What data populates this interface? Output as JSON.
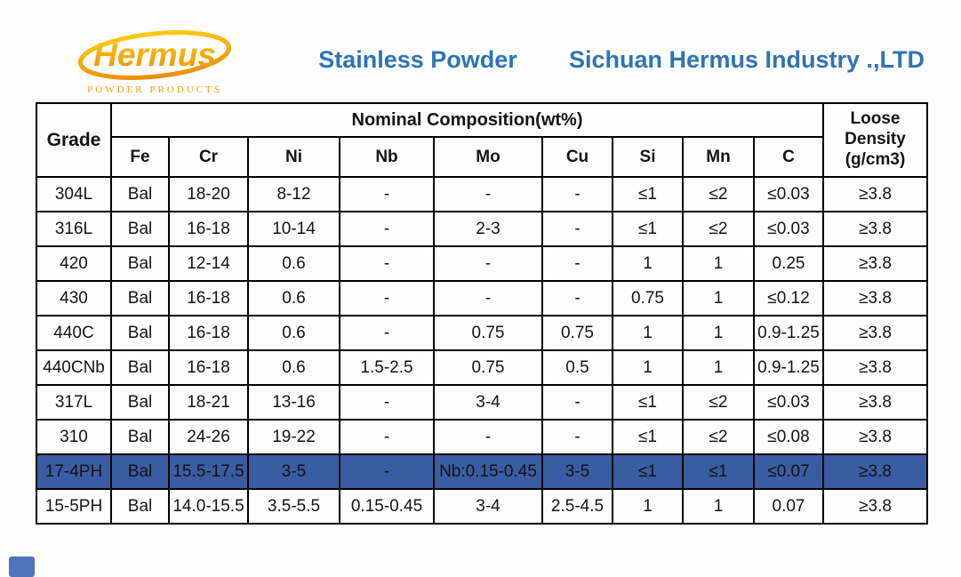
{
  "header": {
    "logo_text": "Hermus",
    "logo_tagline": "POWDER PRODUCTS",
    "product_title": "Stainless Powder",
    "company_name": "Sichuan Hermus Industry .,LTD"
  },
  "colors": {
    "title_blue": "#2e74b5",
    "highlight_row_blue": "#3a5ca2",
    "logo_gold_light": "#fdc913",
    "logo_gold_dark": "#ee8f04",
    "corner_mark_blue": "#4f74bd",
    "border_black": "#000000"
  },
  "table": {
    "grade_header": "Grade",
    "composition_header": "Nominal Composition(wt%)",
    "density_header_lines": [
      "Loose",
      "Density",
      "(g/cm3)"
    ],
    "element_headers": [
      "Fe",
      "Cr",
      "Ni",
      "Nb",
      "Mo",
      "Cu",
      "Si",
      "Mn",
      "C"
    ],
    "rows": [
      {
        "grade": "304L",
        "highlighted": false,
        "values": [
          "Bal",
          "18-20",
          "8-12",
          "-",
          "-",
          "-",
          "≤1",
          "≤2",
          "≤0.03",
          "≥3.8"
        ]
      },
      {
        "grade": "316L",
        "highlighted": false,
        "values": [
          "Bal",
          "16-18",
          "10-14",
          "-",
          "2-3",
          "-",
          "≤1",
          "≤2",
          "≤0.03",
          "≥3.8"
        ]
      },
      {
        "grade": "420",
        "highlighted": false,
        "values": [
          "Bal",
          "12-14",
          "0.6",
          "-",
          "-",
          "-",
          "1",
          "1",
          "0.25",
          "≥3.8"
        ]
      },
      {
        "grade": "430",
        "highlighted": false,
        "values": [
          "Bal",
          "16-18",
          "0.6",
          "-",
          "-",
          "-",
          "0.75",
          "1",
          "≤0.12",
          "≥3.8"
        ]
      },
      {
        "grade": "440C",
        "highlighted": false,
        "values": [
          "Bal",
          "16-18",
          "0.6",
          "-",
          "0.75",
          "0.75",
          "1",
          "1",
          "0.9-1.25",
          "≥3.8"
        ]
      },
      {
        "grade": "440CNb",
        "highlighted": false,
        "values": [
          "Bal",
          "16-18",
          "0.6",
          "1.5-2.5",
          "0.75",
          "0.5",
          "1",
          "1",
          "0.9-1.25",
          "≥3.8"
        ]
      },
      {
        "grade": "317L",
        "highlighted": false,
        "values": [
          "Bal",
          "18-21",
          "13-16",
          "-",
          "3-4",
          "-",
          "≤1",
          "≤2",
          "≤0.03",
          "≥3.8"
        ]
      },
      {
        "grade": "310",
        "highlighted": false,
        "values": [
          "Bal",
          "24-26",
          "19-22",
          "-",
          "-",
          "-",
          "≤1",
          "≤2",
          "≤0.08",
          "≥3.8"
        ]
      },
      {
        "grade": "17-4PH",
        "highlighted": true,
        "values": [
          "Bal",
          "15.5-17.5",
          "3-5",
          "-",
          "Nb:0.15-0.45",
          "3-5",
          "≤1",
          "≤1",
          "≤0.07",
          "≥3.8"
        ]
      },
      {
        "grade": "15-5PH",
        "highlighted": false,
        "values": [
          "Bal",
          "14.0-15.5",
          "3.5-5.5",
          "0.15-0.45",
          "3-4",
          "2.5-4.5",
          "1",
          "1",
          "0.07",
          "≥3.8"
        ]
      }
    ]
  }
}
